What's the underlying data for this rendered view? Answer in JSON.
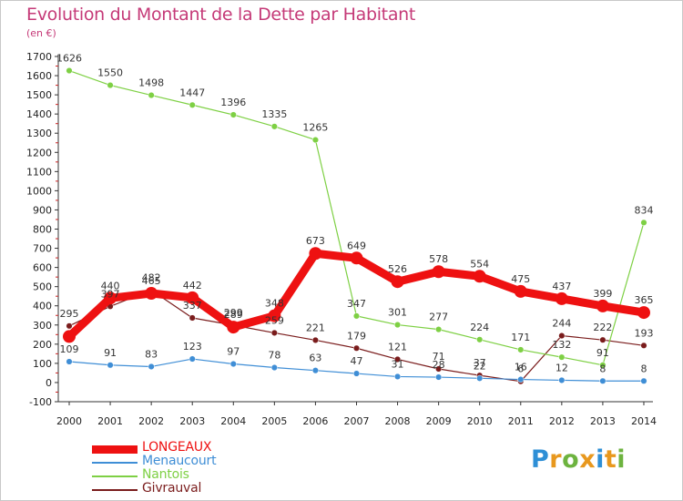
{
  "header": {
    "title": "Evolution du Montant de la Dette par Habitant",
    "unit": "(en €)"
  },
  "brand": {
    "text": "Proxiti",
    "letter_colors": [
      "#2e8fd6",
      "#e8981e",
      "#6db33f",
      "#e8981e",
      "#2e8fd6",
      "#e8981e",
      "#6db33f"
    ]
  },
  "chart_data": {
    "type": "line",
    "title": "Evolution du Montant de la Dette par Habitant",
    "ylabel": "(en €)",
    "xlabel": "",
    "x": [
      "2000",
      "2001",
      "2002",
      "2003",
      "2004",
      "2005",
      "2006",
      "2007",
      "2008",
      "2009",
      "2010",
      "2011",
      "2012",
      "2013",
      "2014"
    ],
    "ylim": [
      -100,
      1700
    ],
    "yticks": [
      -100,
      0,
      100,
      200,
      300,
      400,
      500,
      600,
      700,
      800,
      900,
      1000,
      1100,
      1200,
      1300,
      1400,
      1500,
      1600,
      1700
    ],
    "grid": false,
    "legend_position": "bottom-left",
    "series": [
      {
        "name": "LONGEAUX",
        "color": "#ee1111",
        "labels_shown": [
          false,
          true,
          true,
          true,
          true,
          true,
          true,
          true,
          true,
          true,
          true,
          true,
          true,
          true,
          true
        ],
        "values": [
          240,
          440,
          465,
          442,
          289,
          348,
          673,
          649,
          526,
          578,
          554,
          475,
          437,
          399,
          365
        ]
      },
      {
        "name": "Menaucourt",
        "color": "#3f8ed6",
        "labels_shown": [
          true,
          true,
          true,
          true,
          true,
          true,
          true,
          true,
          true,
          true,
          true,
          true,
          true,
          true,
          true
        ],
        "values": [
          109,
          91,
          83,
          123,
          97,
          78,
          63,
          47,
          31,
          28,
          22,
          16,
          12,
          8,
          8
        ]
      },
      {
        "name": "Nantois",
        "color": "#7ed044",
        "labels_shown": [
          true,
          true,
          true,
          true,
          true,
          true,
          true,
          true,
          true,
          true,
          true,
          true,
          true,
          true,
          true
        ],
        "values": [
          1626,
          1550,
          1498,
          1447,
          1396,
          1335,
          1265,
          347,
          301,
          277,
          224,
          171,
          132,
          91,
          834
        ]
      },
      {
        "name": "Givrauval",
        "color": "#7a1c1c",
        "labels_shown": [
          true,
          true,
          true,
          true,
          true,
          true,
          true,
          true,
          true,
          true,
          true,
          true,
          true,
          true,
          true
        ],
        "values": [
          295,
          397,
          482,
          337,
          299,
          259,
          221,
          179,
          121,
          71,
          37,
          6,
          244,
          222,
          193
        ]
      }
    ]
  }
}
